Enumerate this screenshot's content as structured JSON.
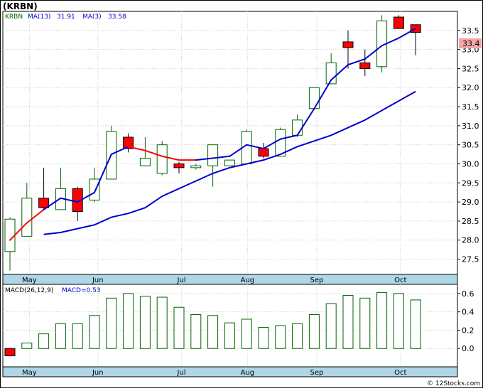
{
  "title": "(KRBN)",
  "legend_main": {
    "ticker": "KRBN",
    "ma13_label": "MA(13)",
    "ma13_value": "31.91",
    "ma3_label": "MA(3)",
    "ma3_value": "33.58"
  },
  "legend_macd": {
    "label": "MACD(26,12,9)",
    "value_label": "MACD=0.53"
  },
  "last_price_tag": "33.4",
  "footer": "© 12Stocks.com",
  "colors": {
    "up_candle_border": "#006400",
    "down_candle_fill": "#ff0000",
    "ma_blue": "#0000cc",
    "ma_red": "#ff0000",
    "axis_band": "#aed6e6",
    "price_tag_bg": "#f4a6a6"
  },
  "chart_data": [
    {
      "type": "candlestick",
      "y_ticks": [
        27.5,
        28.0,
        28.5,
        29.0,
        29.5,
        30.0,
        30.5,
        31.0,
        31.5,
        32.0,
        32.5,
        33.0,
        33.5
      ],
      "y_tick_labels": [
        "27.5",
        "28.0",
        "28.5",
        "29.0",
        "29.5",
        "30.0",
        "30.5",
        "31.0",
        "31.5",
        "32.0",
        "32.5",
        "33.0",
        "33.5"
      ],
      "ylim": [
        27.1,
        34.0
      ],
      "x_tick_labels": [
        "May",
        "Jun",
        "Jul",
        "Aug",
        "Sep",
        "Oct"
      ],
      "x_tick_index": [
        1.15,
        5.2,
        10.15,
        14.05,
        18.15,
        23.1
      ],
      "grid": true,
      "candles": [
        {
          "o": 27.7,
          "h": 28.6,
          "l": 27.2,
          "c": 28.55,
          "up": true
        },
        {
          "o": 28.1,
          "h": 29.5,
          "l": 28.1,
          "c": 29.1,
          "up": true
        },
        {
          "o": 29.1,
          "h": 29.9,
          "l": 28.8,
          "c": 28.85,
          "up": false
        },
        {
          "o": 28.8,
          "h": 29.9,
          "l": 28.8,
          "c": 29.35,
          "up": true
        },
        {
          "o": 29.35,
          "h": 29.4,
          "l": 28.5,
          "c": 28.75,
          "up": false
        },
        {
          "o": 29.05,
          "h": 29.9,
          "l": 29.0,
          "c": 29.6,
          "up": true
        },
        {
          "o": 29.6,
          "h": 31.0,
          "l": 29.6,
          "c": 30.85,
          "up": true
        },
        {
          "o": 30.7,
          "h": 30.8,
          "l": 30.3,
          "c": 30.4,
          "up": false
        },
        {
          "o": 29.95,
          "h": 30.7,
          "l": 29.95,
          "c": 30.15,
          "up": true
        },
        {
          "o": 29.75,
          "h": 30.6,
          "l": 29.7,
          "c": 30.5,
          "up": true
        },
        {
          "o": 30.0,
          "h": 30.05,
          "l": 29.75,
          "c": 29.9,
          "up": false
        },
        {
          "o": 29.9,
          "h": 30.0,
          "l": 29.85,
          "c": 29.95,
          "up": true
        },
        {
          "o": 29.95,
          "h": 30.5,
          "l": 29.4,
          "c": 30.5,
          "up": true
        },
        {
          "o": 29.95,
          "h": 30.1,
          "l": 29.95,
          "c": 30.1,
          "up": true
        },
        {
          "o": 30.0,
          "h": 30.9,
          "l": 30.0,
          "c": 30.85,
          "up": true
        },
        {
          "o": 30.4,
          "h": 30.55,
          "l": 30.15,
          "c": 30.2,
          "up": false
        },
        {
          "o": 30.2,
          "h": 30.95,
          "l": 30.2,
          "c": 30.9,
          "up": true
        },
        {
          "o": 30.75,
          "h": 31.3,
          "l": 30.7,
          "c": 31.15,
          "up": true
        },
        {
          "o": 31.45,
          "h": 32.0,
          "l": 31.45,
          "c": 32.0,
          "up": true
        },
        {
          "o": 32.1,
          "h": 32.9,
          "l": 32.1,
          "c": 32.65,
          "up": true
        },
        {
          "o": 33.2,
          "h": 33.5,
          "l": 32.5,
          "c": 33.05,
          "up": false
        },
        {
          "o": 32.65,
          "h": 33.0,
          "l": 32.3,
          "c": 32.5,
          "up": false
        },
        {
          "o": 32.55,
          "h": 33.9,
          "l": 32.4,
          "c": 33.75,
          "up": true
        },
        {
          "o": 33.85,
          "h": 33.9,
          "l": 33.55,
          "c": 33.55,
          "up": false
        },
        {
          "o": 33.65,
          "h": 33.65,
          "l": 32.85,
          "c": 33.45,
          "up": false
        }
      ],
      "ma3": [
        28.0,
        28.45,
        28.8,
        29.1,
        29.0,
        29.25,
        30.25,
        30.45,
        30.35,
        30.2,
        30.1,
        30.1,
        30.15,
        30.2,
        30.5,
        30.4,
        30.65,
        30.75,
        31.45,
        32.2,
        32.6,
        32.75,
        33.1,
        33.3,
        33.55
      ],
      "ma3_red_segments": [
        [
          0,
          2
        ],
        [
          7,
          11
        ],
        [
          15,
          15
        ]
      ],
      "ma13": [
        null,
        null,
        28.15,
        28.2,
        28.3,
        28.4,
        28.6,
        28.7,
        28.85,
        29.15,
        29.35,
        29.55,
        29.75,
        29.9,
        30.0,
        30.1,
        30.25,
        30.45,
        30.6,
        30.75,
        30.95,
        31.15,
        31.4,
        31.65,
        31.9
      ]
    },
    {
      "type": "bar",
      "name": "MACD",
      "y_ticks": [
        0.0,
        0.2,
        0.4,
        0.6
      ],
      "y_tick_labels": [
        "0.0",
        "0.2",
        "0.4",
        "0.6"
      ],
      "ylim": [
        -0.2,
        0.7
      ],
      "values": [
        -0.08,
        0.06,
        0.16,
        0.27,
        0.27,
        0.36,
        0.55,
        0.6,
        0.57,
        0.56,
        0.45,
        0.37,
        0.36,
        0.28,
        0.32,
        0.23,
        0.25,
        0.27,
        0.37,
        0.49,
        0.58,
        0.55,
        0.61,
        0.6,
        0.53
      ]
    }
  ]
}
